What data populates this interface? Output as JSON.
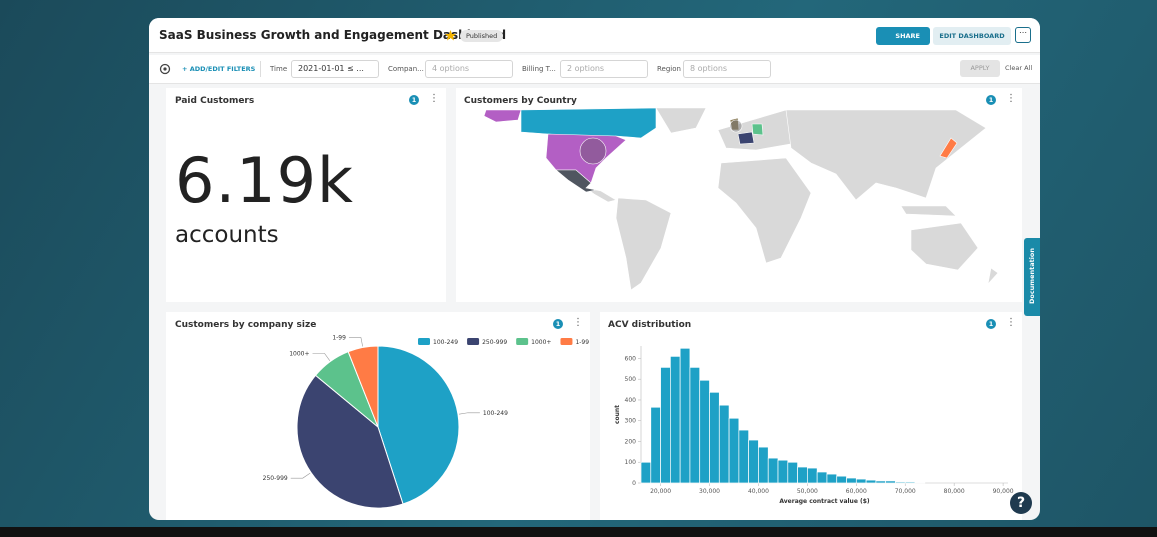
{
  "header": {
    "title": "SaaS Business Growth and Engagement Dashboard",
    "status": "Published",
    "share": "SHARE",
    "edit": "EDIT DASHBOARD"
  },
  "filters": {
    "add": "ADD/EDIT FILTERS",
    "items": [
      {
        "label": "Time",
        "value": "2021-01-01 ≤ ..."
      },
      {
        "label": "Compan...",
        "value": "4 options"
      },
      {
        "label": "Billing T...",
        "value": "2 options"
      },
      {
        "label": "Region",
        "value": "8 options"
      }
    ],
    "apply": "APPLY",
    "clear": "Clear All"
  },
  "panels": {
    "paid": {
      "title": "Paid Customers",
      "filter_count": 1,
      "value": "6.19k",
      "unit": "accounts"
    },
    "country": {
      "title": "Customers by Country",
      "filter_count": 1
    },
    "size": {
      "title": "Customers by company size",
      "filter_count": 1,
      "chart_data": {
        "type": "pie",
        "categories": [
          "100-249",
          "250-999",
          "1000+",
          "1-99"
        ],
        "values": [
          45,
          41,
          8,
          6
        ],
        "colors": [
          "#1ea1c6",
          "#3b4470",
          "#5cc28c",
          "#ff7b45"
        ],
        "legend": "top-right"
      }
    },
    "acv": {
      "title": "ACV distribution",
      "filter_count": 1,
      "chart_data": {
        "type": "histogram",
        "x_label": "Average contract value ($)",
        "y_label": "count",
        "color": "#1ea1c6",
        "bins": [
          16000,
          18000,
          20000,
          22000,
          24000,
          26000,
          28000,
          30000,
          32000,
          34000,
          36000,
          38000,
          40000,
          42000,
          44000,
          46000,
          48000,
          50000,
          52000,
          54000,
          56000,
          58000,
          60000,
          62000,
          64000,
          66000,
          68000,
          70000,
          72000,
          74000
        ],
        "values": [
          100,
          365,
          557,
          610,
          649,
          557,
          495,
          437,
          375,
          312,
          255,
          207,
          173,
          120,
          110,
          100,
          77,
          72,
          53,
          43,
          33,
          24,
          19,
          14,
          10,
          10,
          5,
          5,
          3
        ],
        "xlim": [
          16000,
          91000
        ],
        "ylim": [
          0,
          660
        ],
        "xticks": [
          {
            "value": 20000,
            "label": "20,000"
          },
          {
            "value": 30000,
            "label": "30,000"
          },
          {
            "value": 40000,
            "label": "40,000"
          },
          {
            "value": 50000,
            "label": "50,000"
          },
          {
            "value": 60000,
            "label": "60,000"
          },
          {
            "value": 70000,
            "label": "70,000"
          },
          {
            "value": 80000,
            "label": "80,000"
          },
          {
            "value": 90000,
            "label": "90,000"
          }
        ],
        "yticks": [
          0,
          100,
          200,
          300,
          400,
          500,
          600
        ]
      }
    }
  },
  "documentation": "Documentation",
  "help": "?"
}
